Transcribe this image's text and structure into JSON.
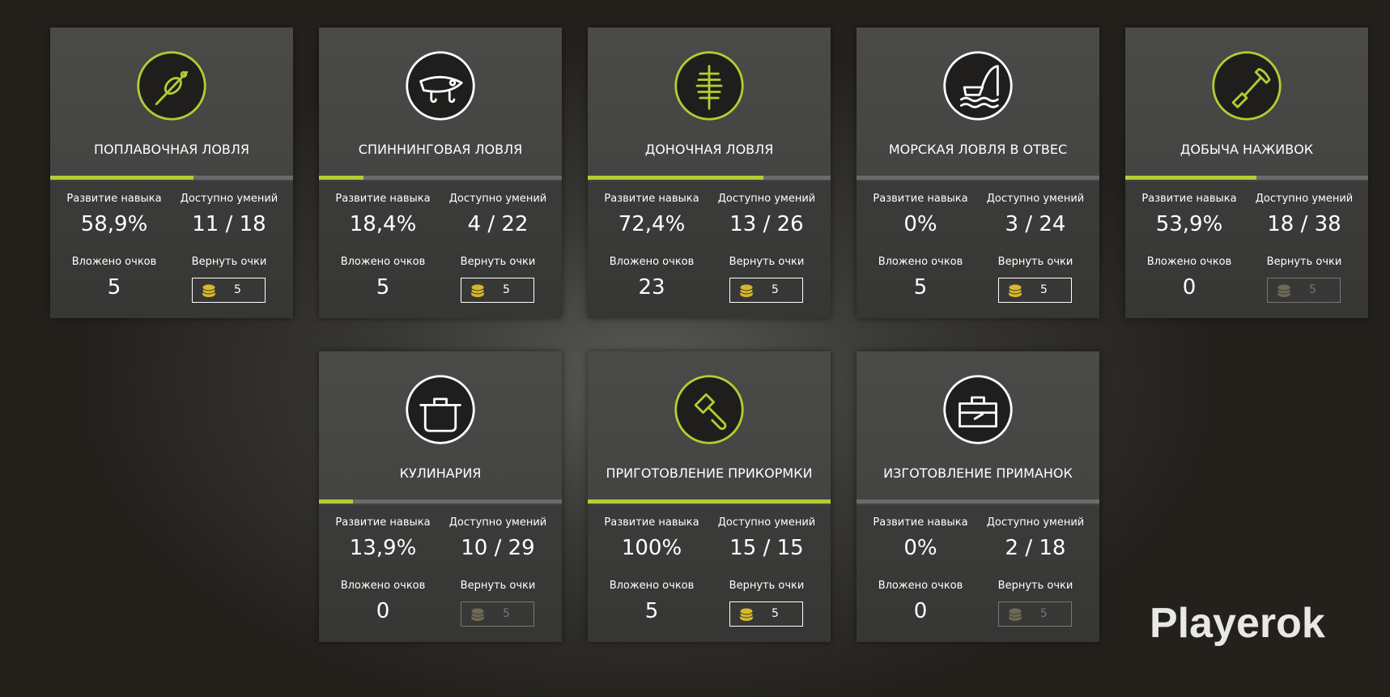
{
  "labels": {
    "progress": "Развитие навыка",
    "available": "Доступно умений",
    "invested": "Вложено очков",
    "refund": "Вернуть очки"
  },
  "cards": [
    {
      "title": "ПОПЛАВОЧНАЯ ЛОВЛЯ",
      "skill_progress": 58.9,
      "skill_progress_label": "58,9%",
      "available": "11 / 18",
      "invested": 5,
      "refund_cost": 5,
      "refund_enabled": true,
      "icon_color": "#b5cc33"
    },
    {
      "title": "СПИННИНГОВАЯ ЛОВЛЯ",
      "skill_progress": 18.4,
      "skill_progress_label": "18,4%",
      "available": "4 / 22",
      "invested": 5,
      "refund_cost": 5,
      "refund_enabled": true,
      "icon_color": "#ffffff"
    },
    {
      "title": "ДОНОЧНАЯ ЛОВЛЯ",
      "skill_progress": 72.4,
      "skill_progress_label": "72,4%",
      "available": "13 / 26",
      "invested": 23,
      "refund_cost": 5,
      "refund_enabled": true,
      "icon_color": "#b5cc33"
    },
    {
      "title": "МОРСКАЯ ЛОВЛЯ В ОТВЕС",
      "skill_progress": 0,
      "skill_progress_label": "0%",
      "available": "3 / 24",
      "invested": 5,
      "refund_cost": 5,
      "refund_enabled": true,
      "icon_color": "#ffffff"
    },
    {
      "title": "ДОБЫЧА НАЖИВОК",
      "skill_progress": 53.9,
      "skill_progress_label": "53,9%",
      "available": "18 / 38",
      "invested": 0,
      "refund_cost": 5,
      "refund_enabled": false,
      "icon_color": "#b5cc33"
    },
    {
      "title": "КУЛИНАРИЯ",
      "skill_progress": 13.9,
      "skill_progress_label": "13,9%",
      "available": "10 / 29",
      "invested": 0,
      "refund_cost": 5,
      "refund_enabled": false,
      "icon_color": "#ffffff"
    },
    {
      "title": "ПРИГОТОВЛЕНИЕ ПРИКОРМКИ",
      "skill_progress": 100,
      "skill_progress_label": "100%",
      "available": "15 / 15",
      "invested": 5,
      "refund_cost": 5,
      "refund_enabled": true,
      "icon_color": "#b5cc33"
    },
    {
      "title": "ИЗГОТОВЛЕНИЕ ПРИМАНОК",
      "skill_progress": 0,
      "skill_progress_label": "0%",
      "available": "2 / 18",
      "invested": 0,
      "refund_cost": 5,
      "refund_enabled": false,
      "icon_color": "#ffffff"
    }
  ],
  "watermark": "Playerok"
}
